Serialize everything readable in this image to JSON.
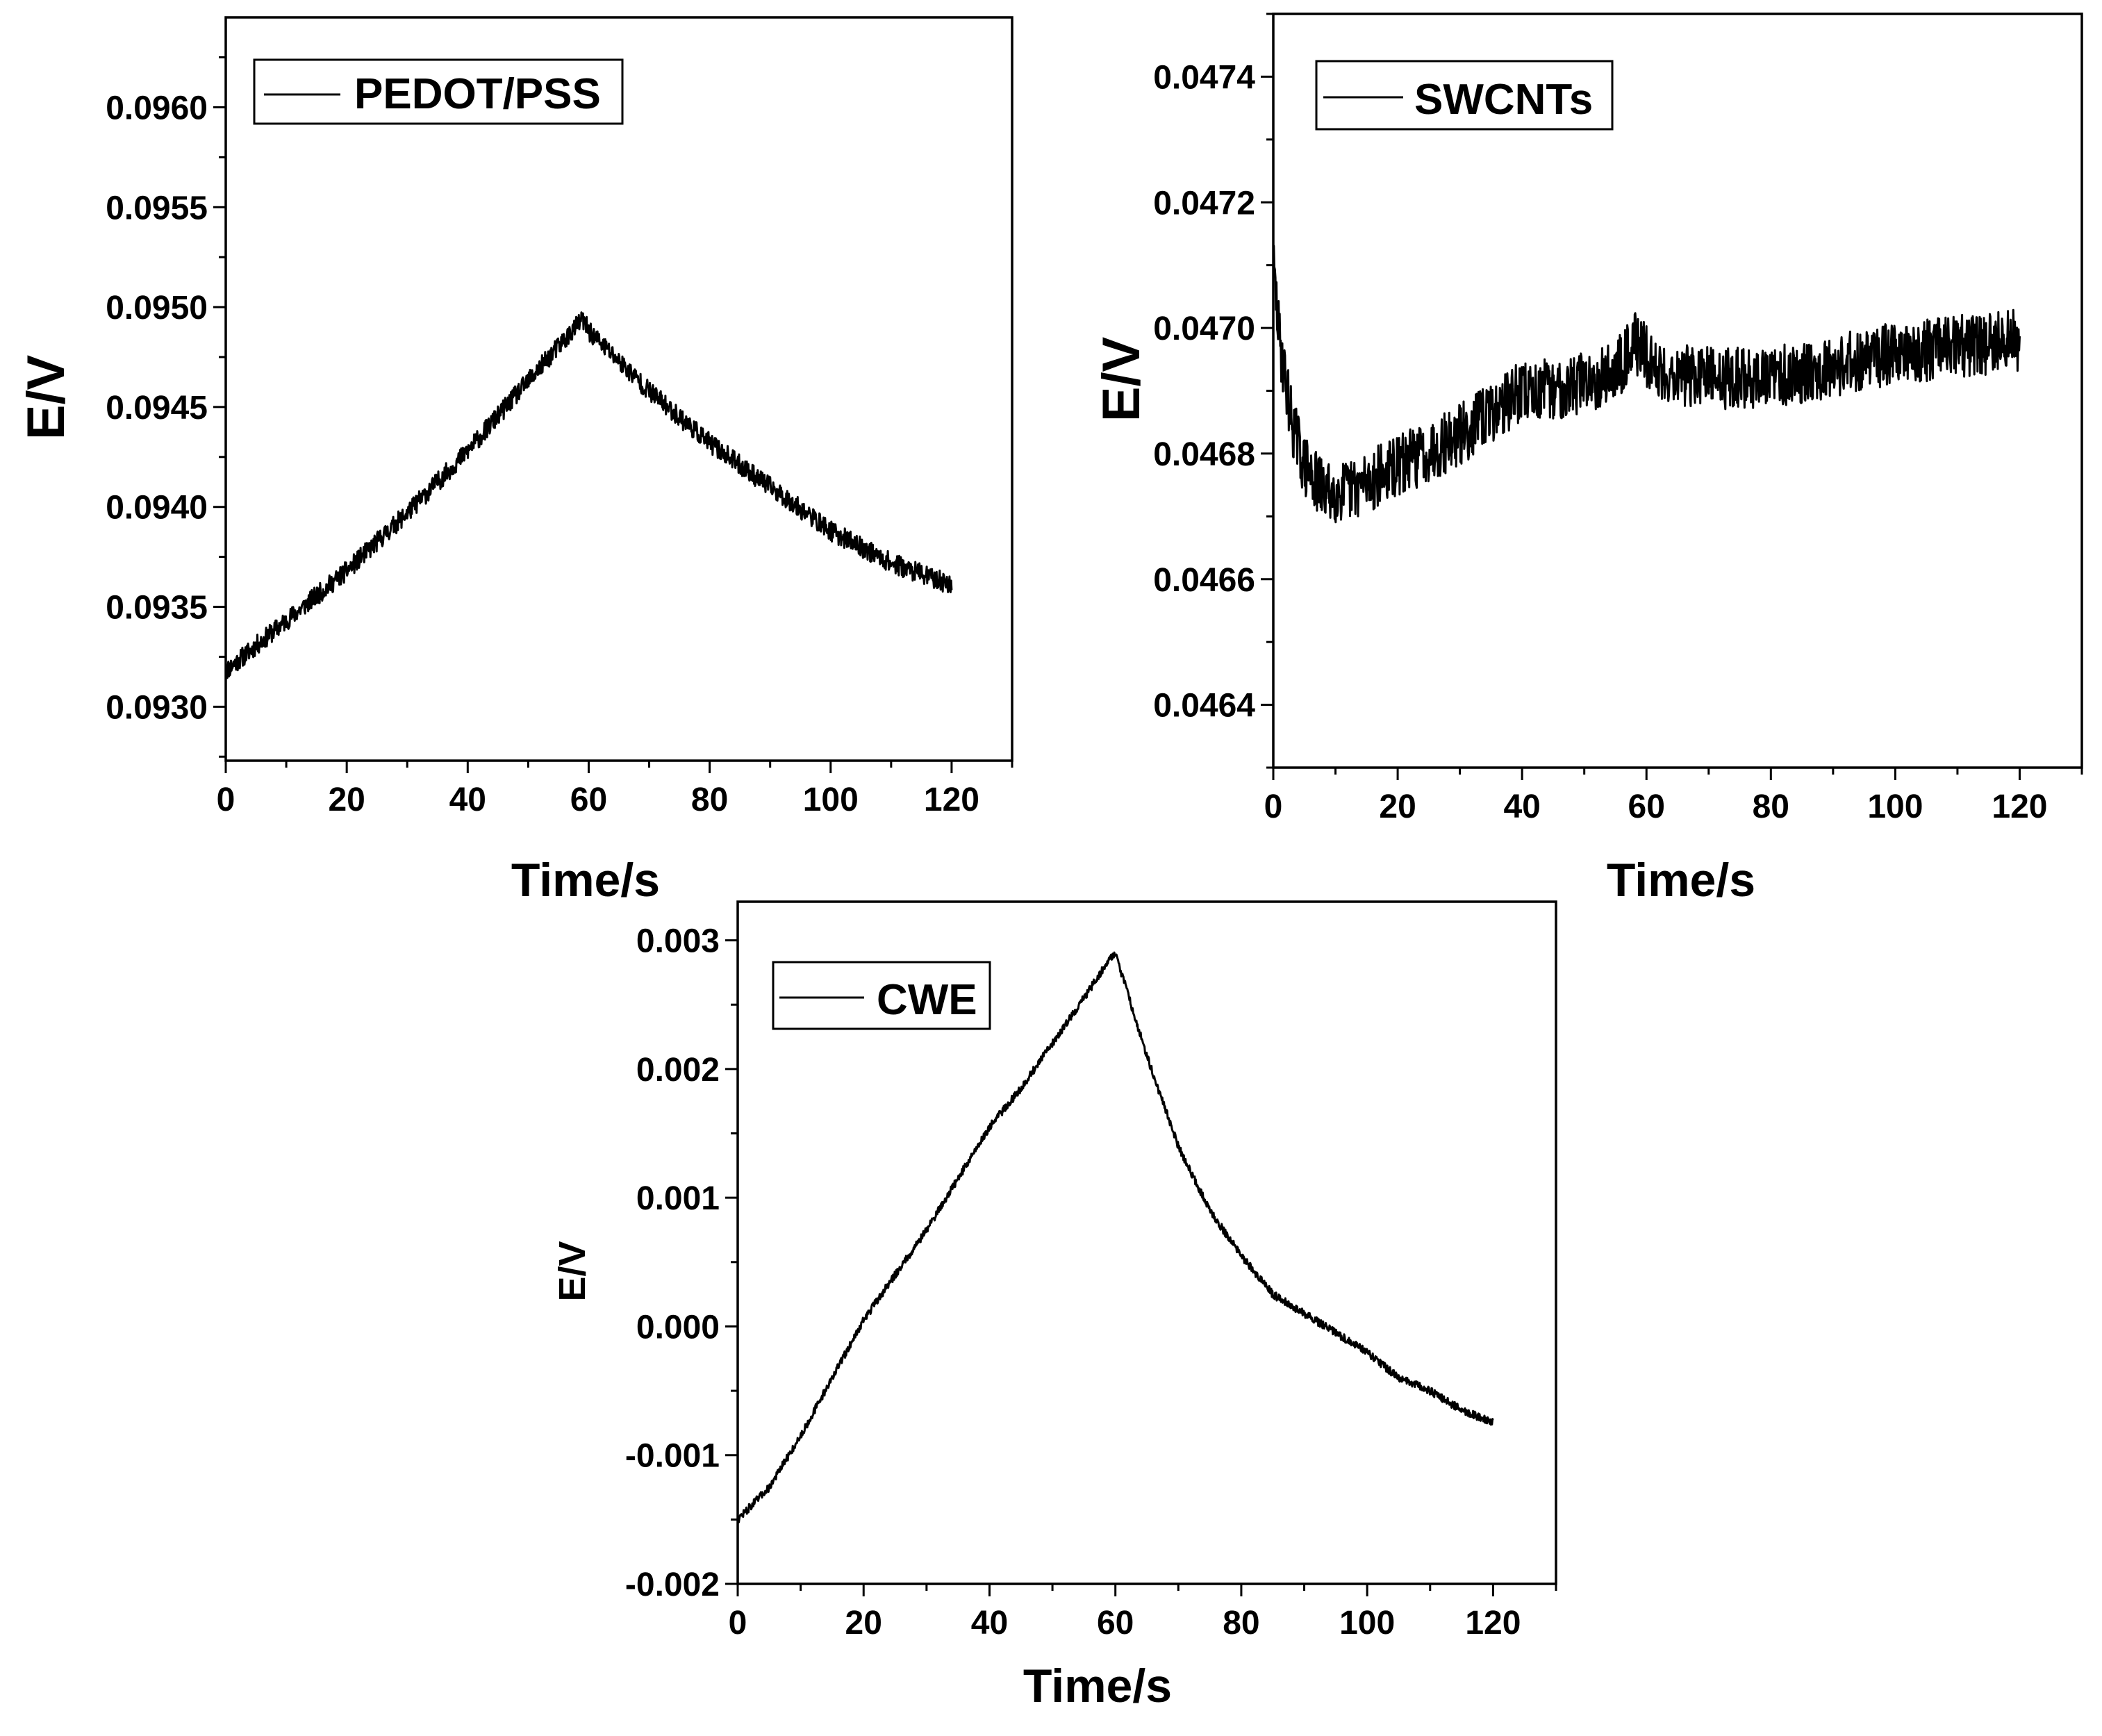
{
  "chart_data": [
    {
      "id": "pedot",
      "type": "line",
      "legend": "PEDOT/PSS",
      "xlabel": "Time/s",
      "ylabel": "E/V",
      "xlim": [
        0,
        130
      ],
      "ylim": [
        0.09273,
        0.09645
      ],
      "xticks": [
        0,
        20,
        40,
        60,
        80,
        100,
        120
      ],
      "xtick_labels": [
        "0",
        "20",
        "40",
        "60",
        "80",
        "100",
        "120"
      ],
      "yticks": [
        0.093,
        0.0935,
        0.094,
        0.0945,
        0.095,
        0.0955,
        0.096
      ],
      "ytick_labels": [
        "0.0930",
        "0.0935",
        "0.0940",
        "0.0945",
        "0.0950",
        "0.0955",
        "0.0960"
      ],
      "series": [
        {
          "name": "PEDOT/PSS",
          "x": [
            0,
            10,
            20,
            30,
            40,
            50,
            59,
            60,
            70,
            80,
            90,
            100,
            110,
            120
          ],
          "y": [
            0.09318,
            0.09343,
            0.09368,
            0.09397,
            0.09428,
            0.09463,
            0.09494,
            0.09488,
            0.09458,
            0.09432,
            0.0941,
            0.09388,
            0.09372,
            0.09361
          ],
          "noise": 5e-05
        }
      ]
    },
    {
      "id": "swcnt",
      "type": "line",
      "legend": "SWCNTs",
      "xlabel": "Time/s",
      "ylabel": "E/V",
      "xlim": [
        0,
        130
      ],
      "ylim": [
        0.0463,
        0.0475
      ],
      "xticks": [
        0,
        20,
        40,
        60,
        80,
        100,
        120
      ],
      "xtick_labels": [
        "0",
        "20",
        "40",
        "60",
        "80",
        "100",
        "120"
      ],
      "yticks": [
        0.0464,
        0.0466,
        0.0468,
        0.047,
        0.0472,
        0.0474
      ],
      "ytick_labels": [
        "0.0464",
        "0.0466",
        "0.0468",
        "0.0470",
        "0.0472",
        "0.0474"
      ],
      "series": [
        {
          "name": "SWCNTs",
          "x": [
            0,
            1,
            3,
            5,
            8,
            12,
            20,
            30,
            40,
            45,
            55,
            58,
            62,
            70,
            80,
            90,
            100,
            110,
            120
          ],
          "y": [
            0.0471,
            0.04698,
            0.04685,
            0.04678,
            0.04674,
            0.04674,
            0.04678,
            0.04683,
            0.0469,
            0.0469,
            0.04693,
            0.04698,
            0.04693,
            0.04692,
            0.04692,
            0.04694,
            0.04696,
            0.04697,
            0.04698
          ],
          "noise": 5e-05
        }
      ]
    },
    {
      "id": "cwe",
      "type": "line",
      "legend": "CWE",
      "xlabel": "Time/s",
      "ylabel": "E/V",
      "xlim": [
        0,
        130
      ],
      "ylim": [
        -0.002,
        0.0033
      ],
      "xticks": [
        0,
        20,
        40,
        60,
        80,
        100,
        120
      ],
      "xtick_labels": [
        "0",
        "20",
        "40",
        "60",
        "80",
        "100",
        "120"
      ],
      "yticks": [
        -0.002,
        -0.001,
        0.0,
        0.001,
        0.002,
        0.003
      ],
      "ytick_labels": [
        "-0.002",
        "-0.001",
        "0.000",
        "0.001",
        "0.002",
        "0.003"
      ],
      "series": [
        {
          "name": "CWE",
          "x": [
            0,
            5,
            10,
            15,
            20,
            25,
            30,
            35,
            40,
            45,
            50,
            55,
            59,
            60,
            65,
            70,
            75,
            80,
            85,
            90,
            95,
            100,
            105,
            110,
            115,
            120
          ],
          "y": [
            -0.0015,
            -0.00125,
            -0.00085,
            -0.0004,
            5e-05,
            0.0004,
            0.00075,
            0.00115,
            0.00155,
            0.00185,
            0.0022,
            0.00255,
            0.00285,
            0.0029,
            0.0021,
            0.0014,
            0.0009,
            0.00055,
            0.00025,
            0.0001,
            -5e-05,
            -0.0002,
            -0.0004,
            -0.0005,
            -0.00065,
            -0.00075
          ],
          "noise": 3e-05
        }
      ]
    }
  ]
}
